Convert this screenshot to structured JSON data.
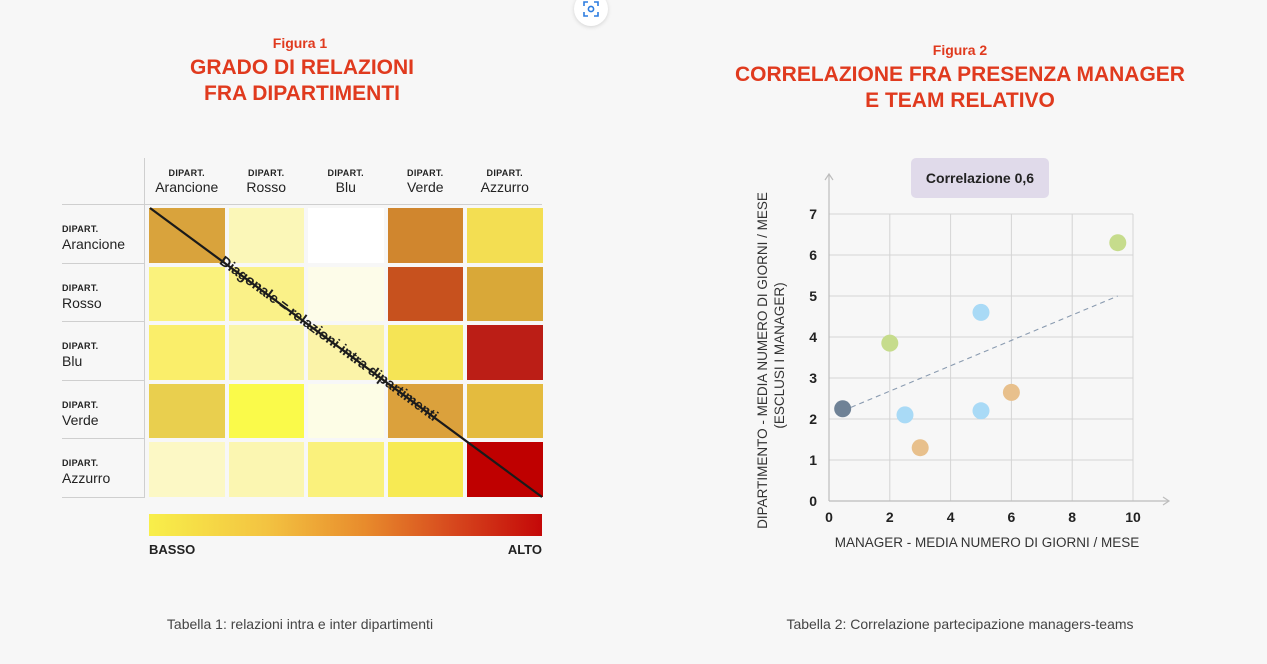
{
  "figure1": {
    "label": "Figura 1",
    "title_line1": "GRADO DI RELAZIONI",
    "title_line2": "FRA DIPARTIMENTI",
    "caption": "Tabella 1: relazioni intra e inter dipartimenti"
  },
  "figure2": {
    "label": "Figura 2",
    "title_line1": "CORRELAZIONE FRA PRESENZA MANAGER",
    "title_line2": "E TEAM RELATIVO",
    "caption": "Tabella 2: Correlazione partecipazione managers-teams",
    "correlation_badge": "Correlazione 0,6"
  },
  "chart_data": [
    {
      "type": "heatmap",
      "title": "GRADO DI RELAZIONI FRA DIPARTIMENTI",
      "row_prefix": "DIPART.",
      "col_prefix": "DIPART.",
      "columns": [
        "Arancione",
        "Rosso",
        "Blu",
        "Verde",
        "Azzurro"
      ],
      "rows": [
        "Arancione",
        "Rosso",
        "Blu",
        "Verde",
        "Azzurro"
      ],
      "cell_colors": [
        [
          "#d9a33c",
          "#fbf7b8",
          "#ffffff",
          "#d0862e",
          "#f3de52"
        ],
        [
          "#faf27c",
          "#faf188",
          "#fdfce9",
          "#c7511e",
          "#d9a838"
        ],
        [
          "#faee6a",
          "#faf5a6",
          "#fbf3a8",
          "#f5e455",
          "#bb1e16"
        ],
        [
          "#e9cf4e",
          "#fafa4a",
          "#fdfde6",
          "#dba13c",
          "#e4bb3e"
        ],
        [
          "#fcf8c5",
          "#fbf6b1",
          "#faf17c",
          "#f7ea53",
          "#bf0000"
        ]
      ],
      "diagonal_annotation": "Diagonale = relazioni intra dipartimenti",
      "legend_low": "BASSO",
      "legend_high": "ALTO",
      "legend_colors": [
        "#f8ef4a",
        "#f3c341",
        "#e88b2c",
        "#d6461d",
        "#c40808"
      ]
    },
    {
      "type": "scatter",
      "title": "CORRELAZIONE FRA PRESENZA MANAGER E TEAM RELATIVO",
      "xlabel": "MANAGER - MEDIA NUMERO DI GIORNI / MESE",
      "ylabel_line1": "DIPARTIMENTO - MEDIA NUMERO DI GIORNI / MESE",
      "ylabel_line2": "(ESCLUSI I MANAGER)",
      "xlim": [
        0,
        10
      ],
      "ylim": [
        0,
        7
      ],
      "x_ticks": [
        0,
        2,
        4,
        6,
        8,
        10
      ],
      "y_ticks": [
        0,
        1,
        2,
        3,
        4,
        5,
        6,
        7
      ],
      "grid": true,
      "points": [
        {
          "x": 0.45,
          "y": 2.25,
          "color": "#6f8296"
        },
        {
          "x": 2.0,
          "y": 3.85,
          "color": "#c6dc8c"
        },
        {
          "x": 2.5,
          "y": 2.1,
          "color": "#a9daf6"
        },
        {
          "x": 3.0,
          "y": 1.3,
          "color": "#e8c08c"
        },
        {
          "x": 5.0,
          "y": 4.6,
          "color": "#a9daf6"
        },
        {
          "x": 5.0,
          "y": 2.2,
          "color": "#a9daf6"
        },
        {
          "x": 6.0,
          "y": 2.65,
          "color": "#e8c08c"
        },
        {
          "x": 9.5,
          "y": 6.3,
          "color": "#c6dc8c"
        }
      ],
      "trendline": {
        "x0": 0.45,
        "y0": 2.2,
        "x1": 9.5,
        "y1": 5.0
      }
    }
  ]
}
